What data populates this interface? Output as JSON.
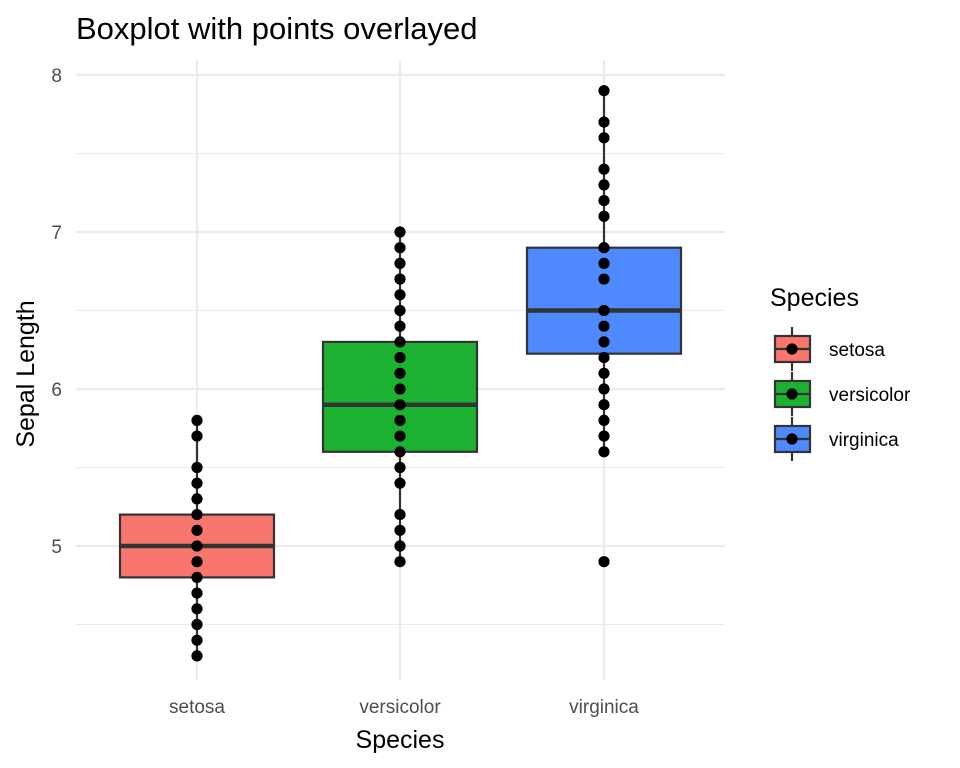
{
  "chart_data": {
    "type": "boxplot",
    "title": "Boxplot with points overlayed",
    "xlabel": "Species",
    "ylabel": "Sepal Length",
    "categories": [
      "setosa",
      "versicolor",
      "virginica"
    ],
    "ylim": [
      4.3,
      8.0
    ],
    "yticks": [
      5,
      6,
      7,
      8
    ],
    "grid": true,
    "legend": {
      "title": "Species",
      "position": "right",
      "entries": [
        "setosa",
        "versicolor",
        "virginica"
      ]
    },
    "colors": {
      "setosa": "#f8766d",
      "versicolor": "#1bb232",
      "virginica": "#4e8afd"
    },
    "boxes": [
      {
        "category": "setosa",
        "whisker_low": 4.3,
        "q1": 4.8,
        "median": 5.0,
        "q3": 5.2,
        "whisker_high": 5.8
      },
      {
        "category": "versicolor",
        "whisker_low": 4.9,
        "q1": 5.6,
        "median": 5.9,
        "q3": 6.3,
        "whisker_high": 7.0
      },
      {
        "category": "virginica",
        "whisker_low": 5.6,
        "q1": 6.225,
        "median": 6.5,
        "q3": 6.9,
        "whisker_high": 7.9
      }
    ],
    "points": {
      "setosa": [
        4.3,
        4.4,
        4.5,
        4.6,
        4.7,
        4.8,
        4.9,
        5.0,
        5.1,
        5.2,
        5.3,
        5.4,
        5.5,
        5.7,
        5.8
      ],
      "versicolor": [
        4.9,
        5.0,
        5.1,
        5.2,
        5.4,
        5.5,
        5.6,
        5.7,
        5.8,
        5.9,
        6.0,
        6.1,
        6.2,
        6.3,
        6.4,
        6.5,
        6.6,
        6.7,
        6.8,
        6.9,
        7.0
      ],
      "virginica": [
        4.9,
        5.6,
        5.7,
        5.8,
        5.9,
        6.0,
        6.1,
        6.2,
        6.3,
        6.4,
        6.5,
        6.7,
        6.8,
        6.9,
        7.1,
        7.2,
        7.3,
        7.4,
        7.6,
        7.7,
        7.9
      ]
    }
  }
}
